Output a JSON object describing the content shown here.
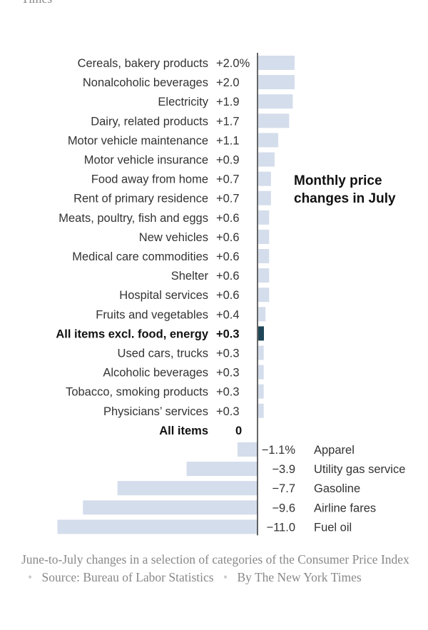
{
  "header_fragment": "Times",
  "chart_data": {
    "type": "bar",
    "orientation": "horizontal",
    "title": "Monthly price changes in July",
    "title_lines": [
      "Monthly price",
      "changes in July"
    ],
    "unit": "%",
    "xlim": [
      -11.0,
      2.0
    ],
    "categories": [
      "Cereals, bakery products",
      "Nonalcoholic beverages",
      "Electricity",
      "Dairy, related products",
      "Motor vehicle maintenance",
      "Motor vehicle insurance",
      "Food away from home",
      "Rent of primary residence",
      "Meats, poultry, fish and eggs",
      "New vehicles",
      "Medical care commodities",
      "Shelter",
      "Hospital services",
      "Fruits and vegetables",
      "All items excl. food, energy",
      "Used cars, trucks",
      "Alcoholic beverages",
      "Tobacco, smoking products",
      "Physicians’ services",
      "All items",
      "Apparel",
      "Utility gas service",
      "Gasoline",
      "Airline fares",
      "Fuel oil"
    ],
    "values": [
      2.0,
      2.0,
      1.9,
      1.7,
      1.1,
      0.9,
      0.7,
      0.7,
      0.6,
      0.6,
      0.6,
      0.6,
      0.6,
      0.4,
      0.3,
      0.3,
      0.3,
      0.3,
      0.3,
      0,
      -1.1,
      -3.9,
      -7.7,
      -9.6,
      -11.0
    ],
    "value_labels": [
      "+2.0%",
      "+2.0",
      "+1.9",
      "+1.7",
      "+1.1",
      "+0.9",
      "+0.7",
      "+0.7",
      "+0.6",
      "+0.6",
      "+0.6",
      "+0.6",
      "+0.6",
      "+0.4",
      "+0.3",
      "+0.3",
      "+0.3",
      "+0.3",
      "+0.3",
      "0",
      "−1.1%",
      "−3.9",
      "−7.7",
      "−9.6",
      "−11.0"
    ],
    "bold_categories": [
      "All items excl. food, energy",
      "All items"
    ],
    "colors": {
      "bar": "#d4ddeb",
      "highlight": "#1f4658",
      "axis": "#333333"
    }
  },
  "caption": {
    "description": "June-to-July changes in a selection of categories of the Consumer Price Index",
    "source": "Source: Bureau of Labor Statistics",
    "credit": "By The New York Times"
  }
}
